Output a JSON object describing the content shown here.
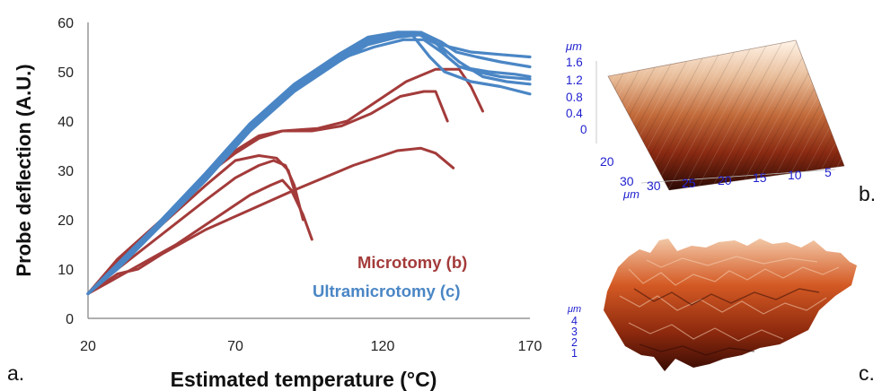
{
  "chart_data": {
    "type": "line",
    "xlabel": "Estimated temperature (°C)",
    "ylabel": "Probe deflection (A.U.)",
    "xlim": [
      20,
      170
    ],
    "ylim": [
      0,
      60
    ],
    "xticks": [
      20,
      70,
      120,
      170
    ],
    "yticks": [
      0,
      10,
      20,
      30,
      40,
      50,
      60
    ],
    "legend_placement": "bottom-right",
    "panel_labels": {
      "a": "a.",
      "b": "b.",
      "c": "c."
    },
    "colors": {
      "microtomy": "#a33b3a",
      "ultramicrotomy": "#4a86c5",
      "axis": "#7f7f7f",
      "inset_tick": "#1f1fcf"
    },
    "series": [
      {
        "group": "microtomy",
        "points": [
          [
            20,
            5
          ],
          [
            30,
            9
          ],
          [
            37,
            10
          ],
          [
            45,
            13
          ],
          [
            60,
            18
          ],
          [
            75,
            22
          ],
          [
            90,
            26
          ],
          [
            110,
            31
          ],
          [
            125,
            34
          ],
          [
            133,
            34.5
          ],
          [
            138,
            33.5
          ],
          [
            144,
            30.5
          ]
        ]
      },
      {
        "group": "microtomy",
        "points": [
          [
            20,
            5
          ],
          [
            35,
            10
          ],
          [
            50,
            15
          ],
          [
            65,
            21
          ],
          [
            75,
            25
          ],
          [
            82,
            27
          ],
          [
            86,
            28
          ],
          [
            89,
            26
          ],
          [
            93,
            21
          ],
          [
            96,
            16
          ]
        ]
      },
      {
        "group": "microtomy",
        "points": [
          [
            20,
            5
          ],
          [
            30,
            10
          ],
          [
            45,
            17
          ],
          [
            60,
            24
          ],
          [
            70,
            28.5
          ],
          [
            78,
            31
          ],
          [
            83,
            32
          ],
          [
            87,
            31
          ],
          [
            90,
            27
          ],
          [
            93,
            20
          ]
        ]
      },
      {
        "group": "microtomy",
        "points": [
          [
            20,
            5
          ],
          [
            30,
            11
          ],
          [
            45,
            19
          ],
          [
            60,
            27
          ],
          [
            70,
            32
          ],
          [
            78,
            33
          ],
          [
            84,
            32.5
          ],
          [
            88,
            30
          ],
          [
            91,
            24
          ]
        ]
      },
      {
        "group": "microtomy",
        "points": [
          [
            20,
            5
          ],
          [
            30,
            11.5
          ],
          [
            45,
            19.5
          ],
          [
            60,
            29
          ],
          [
            70,
            33.5
          ],
          [
            78,
            36.5
          ],
          [
            86,
            38
          ],
          [
            96,
            38
          ],
          [
            106,
            39
          ],
          [
            116,
            41.5
          ],
          [
            126,
            45
          ],
          [
            134,
            46
          ],
          [
            138,
            46
          ],
          [
            142,
            40
          ]
        ]
      },
      {
        "group": "microtomy",
        "points": [
          [
            20,
            5
          ],
          [
            30,
            12
          ],
          [
            45,
            20
          ],
          [
            60,
            29
          ],
          [
            70,
            34
          ],
          [
            78,
            37
          ],
          [
            86,
            38
          ],
          [
            98,
            38.5
          ],
          [
            108,
            40
          ],
          [
            118,
            44
          ],
          [
            128,
            48
          ],
          [
            138,
            50.5
          ],
          [
            146,
            50.5
          ],
          [
            150,
            47
          ],
          [
            154,
            42
          ]
        ]
      },
      {
        "group": "ultramicrotomy",
        "points": [
          [
            20,
            5
          ],
          [
            30,
            10
          ],
          [
            45,
            19
          ],
          [
            60,
            28
          ],
          [
            75,
            38
          ],
          [
            90,
            46
          ],
          [
            105,
            52
          ],
          [
            115,
            55.5
          ],
          [
            125,
            57
          ],
          [
            133,
            57.5
          ],
          [
            138,
            56
          ],
          [
            142,
            53
          ],
          [
            146,
            51
          ],
          [
            152,
            50
          ],
          [
            160,
            49
          ],
          [
            170,
            48.5
          ]
        ]
      },
      {
        "group": "ultramicrotomy",
        "points": [
          [
            20,
            5
          ],
          [
            30,
            10.5
          ],
          [
            45,
            19.5
          ],
          [
            60,
            28.5
          ],
          [
            75,
            38.5
          ],
          [
            90,
            46.5
          ],
          [
            105,
            52.5
          ],
          [
            115,
            56
          ],
          [
            125,
            57.5
          ],
          [
            133,
            58
          ],
          [
            140,
            56
          ],
          [
            145,
            54
          ],
          [
            152,
            53
          ],
          [
            160,
            52
          ],
          [
            170,
            51
          ]
        ]
      },
      {
        "group": "ultramicrotomy",
        "points": [
          [
            20,
            5
          ],
          [
            30,
            11
          ],
          [
            45,
            20
          ],
          [
            60,
            29
          ],
          [
            75,
            39
          ],
          [
            90,
            47
          ],
          [
            105,
            53
          ],
          [
            115,
            56.5
          ],
          [
            125,
            58
          ],
          [
            132,
            58
          ],
          [
            140,
            55
          ],
          [
            146,
            52
          ],
          [
            154,
            49
          ],
          [
            162,
            48
          ],
          [
            170,
            47.5
          ]
        ]
      },
      {
        "group": "ultramicrotomy",
        "points": [
          [
            20,
            5
          ],
          [
            30,
            11
          ],
          [
            45,
            20
          ],
          [
            60,
            29.5
          ],
          [
            75,
            39.5
          ],
          [
            90,
            47.5
          ],
          [
            105,
            53.5
          ],
          [
            115,
            57
          ],
          [
            125,
            58
          ],
          [
            130,
            57.5
          ],
          [
            136,
            53
          ],
          [
            141,
            50
          ],
          [
            150,
            48
          ],
          [
            160,
            47
          ],
          [
            170,
            45.5
          ]
        ]
      },
      {
        "group": "ultramicrotomy",
        "points": [
          [
            20,
            5
          ],
          [
            30,
            10.5
          ],
          [
            45,
            19.5
          ],
          [
            60,
            29
          ],
          [
            75,
            39
          ],
          [
            90,
            47
          ],
          [
            105,
            53
          ],
          [
            115,
            56.5
          ],
          [
            125,
            58
          ],
          [
            131,
            58
          ],
          [
            137,
            56
          ],
          [
            143,
            55
          ],
          [
            150,
            54
          ],
          [
            160,
            53.5
          ],
          [
            170,
            53
          ]
        ]
      },
      {
        "group": "ultramicrotomy",
        "points": [
          [
            20,
            5
          ],
          [
            30,
            11
          ],
          [
            45,
            20
          ],
          [
            60,
            29.5
          ],
          [
            75,
            39.5
          ],
          [
            90,
            47
          ],
          [
            105,
            52.5
          ],
          [
            117,
            55
          ],
          [
            127,
            56.5
          ],
          [
            134,
            56.5
          ],
          [
            140,
            54
          ],
          [
            146,
            51
          ],
          [
            156,
            50
          ],
          [
            165,
            49.5
          ],
          [
            170,
            49
          ]
        ]
      }
    ],
    "legend": [
      {
        "label": "Microtomy (b)",
        "group": "microtomy"
      },
      {
        "label": "Ultramicrotomy (c)",
        "group": "ultramicrotomy"
      }
    ]
  },
  "inset_b": {
    "z_unit": "μm",
    "z_ticks": [
      "1.6",
      "1.2",
      "0.8",
      "0.4",
      "0"
    ],
    "y_ticks": [
      "20",
      "30"
    ],
    "x_ticks": [
      "30",
      "25",
      "20",
      "15",
      "10",
      "5"
    ],
    "x_unit": "μm"
  },
  "inset_c": {
    "z_unit": "μm",
    "z_ticks": [
      "4",
      "3",
      "2",
      "1"
    ]
  }
}
